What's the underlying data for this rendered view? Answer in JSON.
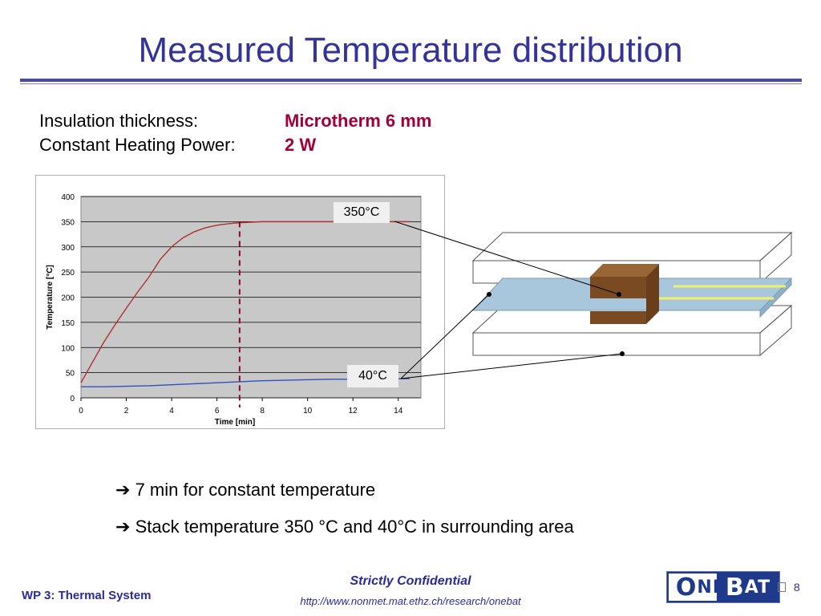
{
  "slide": {
    "title": "Measured Temperature distribution",
    "params": [
      {
        "label": "Insulation thickness:",
        "value": "Microtherm 6 mm"
      },
      {
        "label": "Constant Heating Power:",
        "value": "2 W"
      }
    ],
    "annotations": {
      "hot": "350°C",
      "cold": "40°C"
    },
    "bullets": [
      "7 min for constant temperature",
      "Stack temperature 350 °C and 40°C in surrounding area"
    ],
    "footer": {
      "confidential": "Strictly Confidential",
      "url": "http://www.nonmet.mat.ethz.ch/research/onebat",
      "wp": "WP 3: Thermal System",
      "logo": "ONEBAT",
      "page": "8"
    }
  },
  "colors": {
    "title": "#33339a",
    "accent": "#a0003a",
    "hot_curve": "#b03030",
    "cold_curve": "#3050c0",
    "plot_bg": "#c8c8c8"
  },
  "chart_data": {
    "type": "line",
    "xlabel": "Time [min]",
    "ylabel": "Temperature [°C]",
    "xlim": [
      0,
      15
    ],
    "ylim": [
      0,
      400
    ],
    "xticks": [
      "0",
      "2",
      "4",
      "6",
      "8",
      "10",
      "12",
      "14"
    ],
    "yticks": [
      "0",
      "50",
      "100",
      "150",
      "200",
      "250",
      "300",
      "350",
      "400"
    ],
    "grid": true,
    "vline_x": 7,
    "series": [
      {
        "color": "#b03030",
        "x": [
          0,
          0.5,
          1,
          1.5,
          2,
          2.5,
          3,
          3.5,
          4,
          4.5,
          5,
          5.5,
          6,
          6.5,
          7,
          7.5,
          8,
          9,
          10,
          11,
          12,
          13,
          14,
          14.5
        ],
        "y": [
          30,
          70,
          110,
          145,
          178,
          210,
          240,
          275,
          300,
          318,
          330,
          338,
          343,
          346,
          348,
          349,
          350,
          350,
          350,
          350,
          350,
          350,
          350,
          350
        ]
      },
      {
        "color": "#3050c0",
        "x": [
          0,
          1,
          2,
          3,
          4,
          5,
          6,
          7,
          8,
          9,
          10,
          11,
          12,
          13,
          14,
          14.5
        ],
        "y": [
          22,
          22,
          23,
          24,
          26,
          28,
          30,
          32,
          34,
          35,
          36,
          37,
          37,
          38,
          38,
          38
        ]
      }
    ]
  }
}
